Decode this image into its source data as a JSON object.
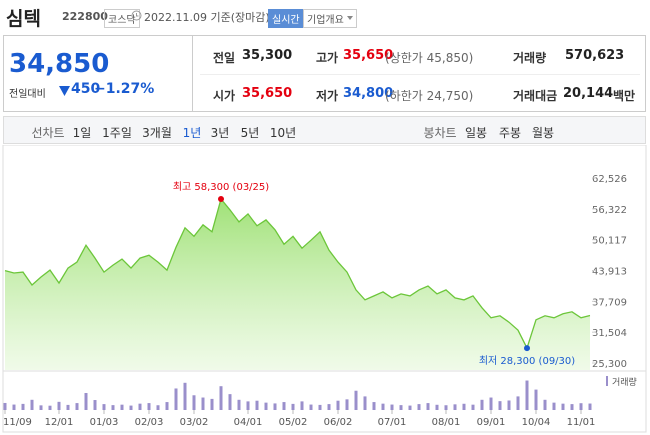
{
  "header": {
    "name": "심텍",
    "code": "222800",
    "market": "코스닥",
    "date": "2022.11.09 기준(장마감)",
    "realtime": "실시간",
    "company": "기업개요"
  },
  "quote": {
    "price": "34,850",
    "change_label": "전일대비",
    "change": "450",
    "change_rate": "−1.27%",
    "color": "#1a5bd0",
    "rows": [
      [
        {
          "label": "전일",
          "value": "35,300",
          "color": "#222"
        },
        {
          "label": "고가",
          "value": "35,650",
          "note": "(상한가 45,850)",
          "color": "#e4000f"
        },
        {
          "label": "거래량",
          "value": "570,623",
          "color": "#222"
        }
      ],
      [
        {
          "label": "시가",
          "value": "35,650",
          "color": "#e4000f"
        },
        {
          "label": "저가",
          "value": "34,800",
          "note": "(하한가 24,750)",
          "color": "#1a5bd0"
        },
        {
          "label": "거래대금",
          "value": "20,144",
          "unit": "백만",
          "color": "#222"
        }
      ]
    ]
  },
  "tabs": {
    "line_label": "선차트",
    "periods": [
      "1일",
      "1주일",
      "3개월",
      "1년",
      "3년",
      "5년",
      "10년"
    ],
    "selected": "1년",
    "candle_label": "봉차트",
    "candles": [
      "일봉",
      "주봉",
      "월봉"
    ]
  },
  "chart_data": {
    "type": "line",
    "categories": [
      "11/09",
      null,
      null,
      null,
      null,
      null,
      "12/01",
      null,
      null,
      null,
      null,
      "01/03",
      null,
      null,
      null,
      null,
      "02/03",
      null,
      null,
      null,
      null,
      "03/02",
      null,
      null,
      null,
      null,
      null,
      "04/01",
      null,
      null,
      null,
      null,
      "05/02",
      null,
      null,
      null,
      null,
      "06/02",
      null,
      null,
      null,
      null,
      null,
      "07/01",
      null,
      null,
      null,
      null,
      null,
      "08/01",
      null,
      null,
      null,
      null,
      "09/01",
      null,
      null,
      null,
      null,
      "10/04",
      null,
      null,
      null,
      null,
      "11/01",
      null
    ],
    "series": [
      {
        "color": "#6cc63a",
        "values": [
          43900,
          43400,
          43600,
          41000,
          42600,
          44000,
          41400,
          44400,
          45600,
          49000,
          46400,
          43600,
          45000,
          46200,
          44400,
          46400,
          47000,
          45600,
          44000,
          48600,
          52500,
          50800,
          53100,
          51700,
          58300,
          56100,
          53700,
          55300,
          52900,
          54100,
          52100,
          49200,
          50800,
          48400,
          50000,
          51700,
          48000,
          45600,
          43600,
          40000,
          38000,
          38800,
          39600,
          38400,
          39200,
          38800,
          40000,
          40800,
          39200,
          40000,
          38400,
          38000,
          38800,
          36400,
          34400,
          34800,
          33500,
          31900,
          28300,
          34000,
          34800,
          34400,
          35200,
          35600,
          34400,
          34850
        ]
      },
      {
        "name": "거래량",
        "type": "bar",
        "axis": "y2",
        "color": "#9a8fcb",
        "values": [
          620000,
          480000,
          540000,
          900000,
          410000,
          380000,
          720000,
          450000,
          610000,
          1500000,
          880000,
          520000,
          430000,
          470000,
          390000,
          560000,
          610000,
          420000,
          700000,
          1900000,
          2400000,
          1300000,
          1100000,
          980000,
          2100000,
          1400000,
          900000,
          760000,
          820000,
          650000,
          580000,
          700000,
          540000,
          760000,
          480000,
          450000,
          520000,
          820000,
          940000,
          1700000,
          1200000,
          700000,
          560000,
          480000,
          430000,
          390000,
          520000,
          610000,
          460000,
          420000,
          500000,
          550000,
          470000,
          900000,
          1100000,
          780000,
          840000,
          1200000,
          2600000,
          1800000,
          900000,
          650000,
          560000,
          520000,
          600000,
          570623
        ]
      }
    ],
    "ylim": [
      25300,
      62526
    ],
    "yticks": [
      {
        "value": 62526,
        "label": "62,526"
      },
      {
        "value": 56322,
        "label": "56,322"
      },
      {
        "value": 50117,
        "label": "50,117"
      },
      {
        "value": 43913,
        "label": "43,913"
      },
      {
        "value": 37709,
        "label": "37,709"
      },
      {
        "value": 31504,
        "label": "31,504"
      },
      {
        "value": 25300,
        "label": "25,300"
      }
    ],
    "y2lim": [
      0,
      3000000
    ],
    "grid": false,
    "annotations": {
      "high": "최고 58,300 (03/25)",
      "high_color": "#e4000f",
      "low": "최저 28,300 (09/30)",
      "low_color": "#1a5bd0"
    }
  }
}
